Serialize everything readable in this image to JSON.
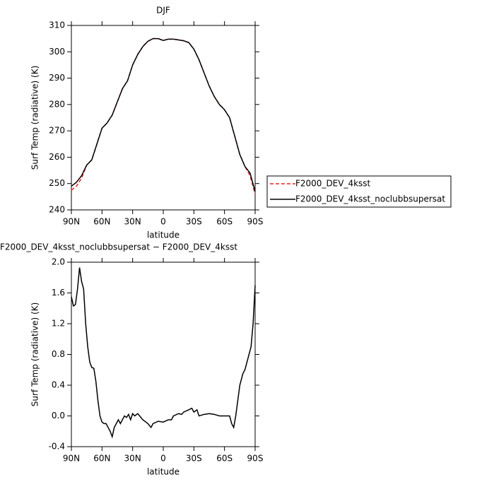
{
  "chart_data": [
    {
      "type": "line",
      "title": "DJF",
      "xlabel": "latitude",
      "ylabel": "Surf Temp (radiative) (K)",
      "x": [
        90,
        85,
        80,
        75,
        70,
        65,
        60,
        55,
        50,
        45,
        40,
        35,
        30,
        25,
        20,
        15,
        10,
        5,
        0,
        -5,
        -10,
        -15,
        -20,
        -25,
        -30,
        -35,
        -40,
        -45,
        -50,
        -55,
        -60,
        -65,
        -70,
        -75,
        -80,
        -85,
        -90
      ],
      "series": [
        {
          "name": "F2000_DEV_4ksst",
          "color": "#e8251f",
          "dash": "dashed",
          "values": [
            247.5,
            249,
            252,
            257,
            259,
            265,
            271,
            273,
            276,
            281,
            286,
            289,
            295,
            299,
            302,
            304,
            305,
            305,
            304.3,
            304.8,
            304.8,
            304.5,
            304.2,
            303.5,
            301,
            297,
            292,
            287,
            283,
            280,
            278,
            275,
            268,
            261,
            256.5,
            253,
            246
          ]
        },
        {
          "name": "F2000_DEV_4ksst_noclubbsupersat",
          "color": "#000000",
          "dash": "solid",
          "values": [
            249,
            250.5,
            253,
            257,
            259,
            265,
            271,
            273,
            276,
            281,
            286,
            289,
            295,
            299,
            302,
            304,
            305,
            305,
            304.3,
            304.8,
            304.8,
            304.5,
            304.2,
            303.5,
            301,
            297,
            292,
            287,
            283,
            280,
            278,
            275,
            268,
            261,
            256.5,
            254,
            247
          ]
        }
      ],
      "xlim": [
        90,
        -90
      ],
      "ylim": [
        240,
        310
      ],
      "xticks": [
        {
          "value": 90,
          "label": "90N"
        },
        {
          "value": 60,
          "label": "60N"
        },
        {
          "value": 30,
          "label": "30N"
        },
        0,
        {
          "value": -30,
          "label": "30S"
        },
        {
          "value": -60,
          "label": "60S"
        },
        {
          "value": -90,
          "label": "90S"
        }
      ],
      "yticks": [
        240,
        250,
        260,
        270,
        280,
        290,
        300,
        310
      ],
      "legend": "right"
    },
    {
      "type": "line",
      "title": "F2000_DEV_4ksst_noclubbsupersat − F2000_DEV_4ksst",
      "xlabel": "latitude",
      "ylabel": "Surf Temp (radiative) (K)",
      "x": [
        90,
        88,
        86,
        84,
        82,
        80,
        78,
        76,
        74,
        72,
        70,
        68,
        66,
        64,
        62,
        60,
        58,
        56,
        54,
        52,
        50,
        48,
        46,
        44,
        42,
        40,
        38,
        36,
        34,
        32,
        30,
        28,
        25,
        20,
        15,
        12,
        10,
        5,
        0,
        -5,
        -8,
        -10,
        -15,
        -18,
        -20,
        -25,
        -28,
        -30,
        -33,
        -35,
        -40,
        -45,
        -50,
        -55,
        -60,
        -65,
        -67,
        -69,
        -71,
        -73,
        -75,
        -78,
        -80,
        -83,
        -86,
        -88,
        -90
      ],
      "series": [
        {
          "color": "#000000",
          "dash": "solid",
          "values": [
            1.55,
            1.43,
            1.45,
            1.65,
            1.93,
            1.75,
            1.65,
            1.2,
            0.9,
            0.7,
            0.63,
            0.62,
            0.45,
            0.2,
            0.0,
            -0.08,
            -0.1,
            -0.1,
            -0.15,
            -0.2,
            -0.27,
            -0.15,
            -0.1,
            -0.05,
            -0.1,
            -0.05,
            0.0,
            -0.02,
            0.02,
            -0.05,
            0.03,
            0.0,
            0.03,
            -0.05,
            -0.1,
            -0.15,
            -0.1,
            -0.07,
            -0.08,
            -0.05,
            -0.05,
            0.0,
            0.03,
            0.02,
            0.05,
            0.08,
            0.1,
            0.05,
            0.08,
            0.0,
            0.02,
            0.03,
            0.02,
            0.0,
            0.0,
            0.0,
            -0.1,
            -0.15,
            0.0,
            0.2,
            0.4,
            0.55,
            0.6,
            0.75,
            0.9,
            1.2,
            1.7
          ]
        }
      ],
      "xlim": [
        90,
        -90
      ],
      "ylim": [
        -0.4,
        2.0
      ],
      "xticks": [
        {
          "value": 90,
          "label": "90N"
        },
        {
          "value": 60,
          "label": "60N"
        },
        {
          "value": 30,
          "label": "30N"
        },
        0,
        {
          "value": -30,
          "label": "30S"
        },
        {
          "value": -60,
          "label": "60S"
        },
        {
          "value": -90,
          "label": "90S"
        }
      ],
      "yticks": [
        -0.4,
        {
          "value": 0,
          "label": "0.0"
        },
        0.4,
        0.8,
        1.2,
        1.6,
        {
          "value": 2,
          "label": "2.0"
        }
      ]
    }
  ]
}
